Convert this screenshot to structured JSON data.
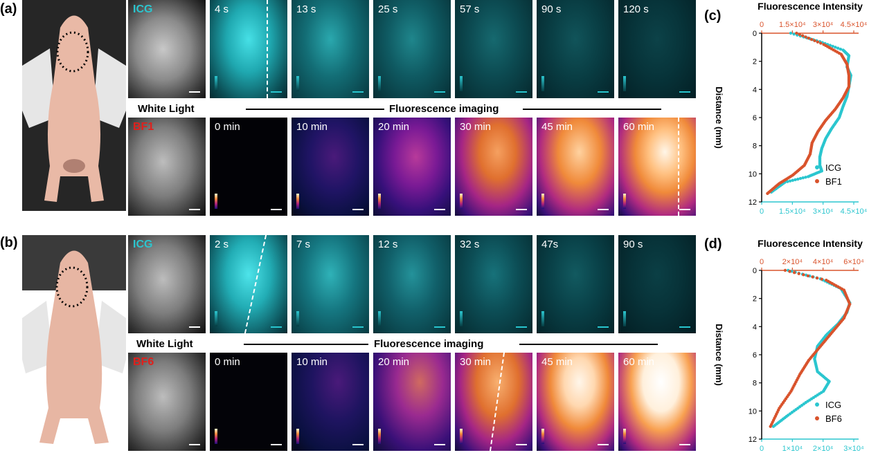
{
  "panel_letters": [
    "(a)",
    "(b)",
    "(c)",
    "(d)"
  ],
  "row_a": {
    "icg_tag": "ICG",
    "icg_times": [
      "4 s",
      "13 s",
      "25 s",
      "57 s",
      "90 s",
      "120 s"
    ],
    "white_light": "White Light",
    "fluorescence_imaging": "Fluorescence imaging",
    "bf_tag": "BF1",
    "bf_times": [
      "0 min",
      "10 min",
      "20 min",
      "30 min",
      "45 min",
      "60 min"
    ]
  },
  "row_b": {
    "icg_tag": "ICG",
    "icg_times": [
      "2 s",
      "7 s",
      "12 s",
      "32 s",
      "47s",
      "90 s"
    ],
    "white_light": "White Light",
    "fluorescence_imaging": "Fluorescence imaging",
    "bf_tag": "BF6",
    "bf_times": [
      "0 min",
      "10 min",
      "20 min",
      "30 min",
      "45 min",
      "60 min"
    ]
  },
  "colors": {
    "icg": "#2bc6cf",
    "bf": "#d9532c",
    "red_tag": "#e0201c"
  },
  "chart_data": [
    {
      "type": "scatter",
      "title": "Fluorescence Intensity",
      "ylabel": "Distance (mm)",
      "top_axis_ticks": [
        "0",
        "1.5×10⁴",
        "3×10⁴",
        "4.5×10⁴"
      ],
      "bottom_axis_ticks": [
        "0",
        "1.5×10⁴",
        "3×10⁴",
        "4.5×10⁴"
      ],
      "y_ticks": [
        "0",
        "2",
        "4",
        "6",
        "8",
        "10",
        "12"
      ],
      "xlim": [
        0,
        50000
      ],
      "ylim": [
        0,
        12
      ],
      "legend_position": "bottom-right",
      "series": [
        {
          "name": "ICG",
          "color": "#2bc6cf",
          "x": [
            15000,
            30000,
            42000,
            45000,
            44000,
            46000,
            45000,
            44000,
            42000,
            40000,
            36000,
            33000,
            31000,
            30000,
            30000,
            31000,
            24000,
            12000,
            5000
          ],
          "y": [
            0,
            0.6,
            1.2,
            1.6,
            2.4,
            3.0,
            3.8,
            4.5,
            5.2,
            6.0,
            6.8,
            7.5,
            8.2,
            8.8,
            9.4,
            9.8,
            10.2,
            10.6,
            11.3
          ]
        },
        {
          "name": "BF1",
          "color": "#d9532c",
          "x": [
            18000,
            32000,
            41000,
            44000,
            45000,
            45000,
            42000,
            38000,
            33000,
            29000,
            26000,
            25000,
            22000,
            16000,
            9000,
            3000
          ],
          "y": [
            0,
            0.8,
            1.5,
            2.2,
            3.0,
            3.8,
            4.6,
            5.4,
            6.2,
            7.0,
            7.8,
            8.6,
            9.4,
            10.1,
            10.7,
            11.4
          ]
        }
      ]
    },
    {
      "type": "scatter",
      "title": "Fluorescence Intensity",
      "ylabel": "Distance (mm)",
      "top_axis_ticks": [
        "0",
        "2×10⁴",
        "4×10⁴",
        "6×10⁴"
      ],
      "bottom_axis_ticks": [
        "0",
        "1×10⁴",
        "2×10⁴",
        "3×10⁴"
      ],
      "y_ticks": [
        "0",
        "2",
        "4",
        "6",
        "8",
        "10",
        "12"
      ],
      "xlim": [
        0,
        33000
      ],
      "ylim": [
        0,
        12
      ],
      "legend_position": "bottom-right",
      "series": [
        {
          "name": "ICG",
          "color": "#2bc6cf",
          "x": [
            9000,
            20000,
            27000,
            30000,
            29000,
            26000,
            22000,
            19000,
            18000,
            19000,
            23000,
            21000,
            15000,
            9000,
            4000
          ],
          "y": [
            0,
            0.6,
            1.3,
            2.3,
            3.0,
            3.8,
            4.6,
            5.4,
            6.3,
            7.2,
            7.9,
            8.6,
            9.4,
            10.3,
            11.1
          ]
        },
        {
          "name": "BF6",
          "color": "#d9532c",
          "x": [
            8000,
            22000,
            28000,
            30000,
            28000,
            24000,
            20000,
            16000,
            13000,
            10000,
            6000,
            3000
          ],
          "y": [
            0,
            0.7,
            1.4,
            2.4,
            3.4,
            4.4,
            5.4,
            6.4,
            7.4,
            8.6,
            9.8,
            11.1
          ]
        }
      ]
    }
  ]
}
